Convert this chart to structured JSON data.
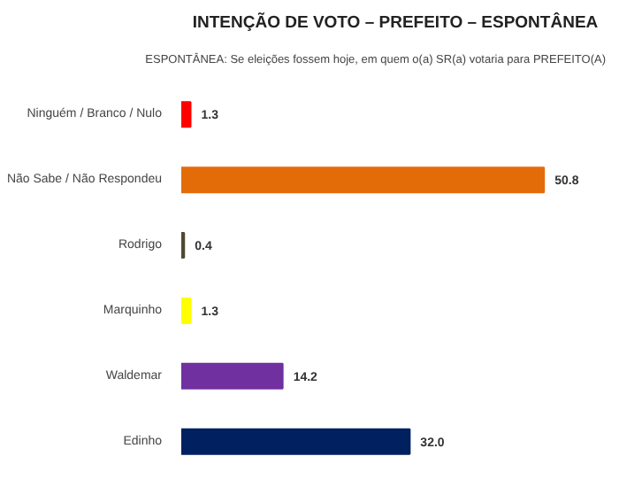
{
  "chart_data": {
    "type": "bar",
    "orientation": "horizontal",
    "title": "INTENÇÃO DE VOTO – PREFEITO – ESPONTÂNEA",
    "subtitle": "ESPONTÂNEA: Se eleições fossem hoje, em quem o(a) SR(a) votaria para PREFEITO(A)",
    "categories": [
      "Ninguém / Branco / Nulo",
      "Não Sabe / Não Respondeu",
      "Rodrigo",
      "Marquinho",
      "Waldemar",
      "Edinho"
    ],
    "values": [
      1.3,
      50.8,
      0.4,
      1.3,
      14.2,
      32.0
    ],
    "colors": [
      "#ff0000",
      "#e36c09",
      "#4f4a32",
      "#ffff00",
      "#7030a0",
      "#002060"
    ],
    "value_labels": [
      "1.3",
      "50.8",
      "0.4",
      "1.3",
      "14.2",
      "32.0"
    ],
    "grid": false
  }
}
